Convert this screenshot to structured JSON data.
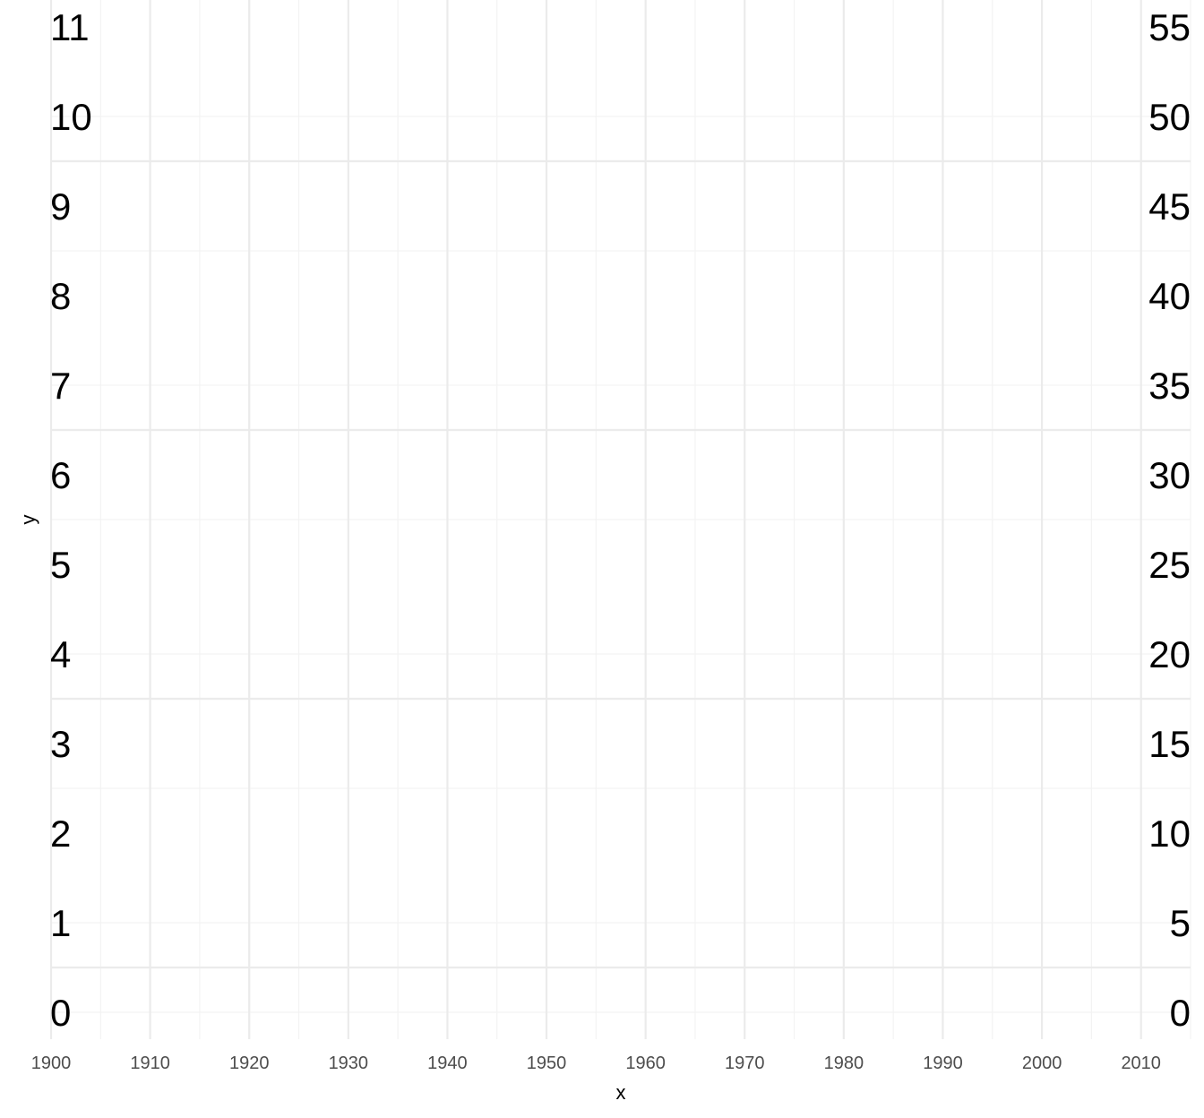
{
  "chart_data": {
    "type": "scatter",
    "title": "",
    "xlabel": "x",
    "ylabel": "y",
    "x_ticks": [
      "1900",
      "1910",
      "1920",
      "1930",
      "1940",
      "1950",
      "1960",
      "1970",
      "1980",
      "1990",
      "2000",
      "2010"
    ],
    "xlim": [
      1900,
      2015
    ],
    "ylim": [
      -0.3,
      11.3
    ],
    "left_labels": [
      "0",
      "1",
      "2",
      "3",
      "4",
      "5",
      "6",
      "7",
      "8",
      "9",
      "10",
      "11"
    ],
    "right_labels": [
      "0",
      "5",
      "10",
      "15",
      "20",
      "25",
      "30",
      "35",
      "40",
      "45",
      "50",
      "55"
    ],
    "grid": true,
    "series": [],
    "colors": {
      "grid_major": "#ebebeb",
      "grid_minor": "#f3f3f3",
      "tick_text": "#4d4d4d",
      "label_text": "#000000",
      "background": "#ffffff"
    }
  }
}
